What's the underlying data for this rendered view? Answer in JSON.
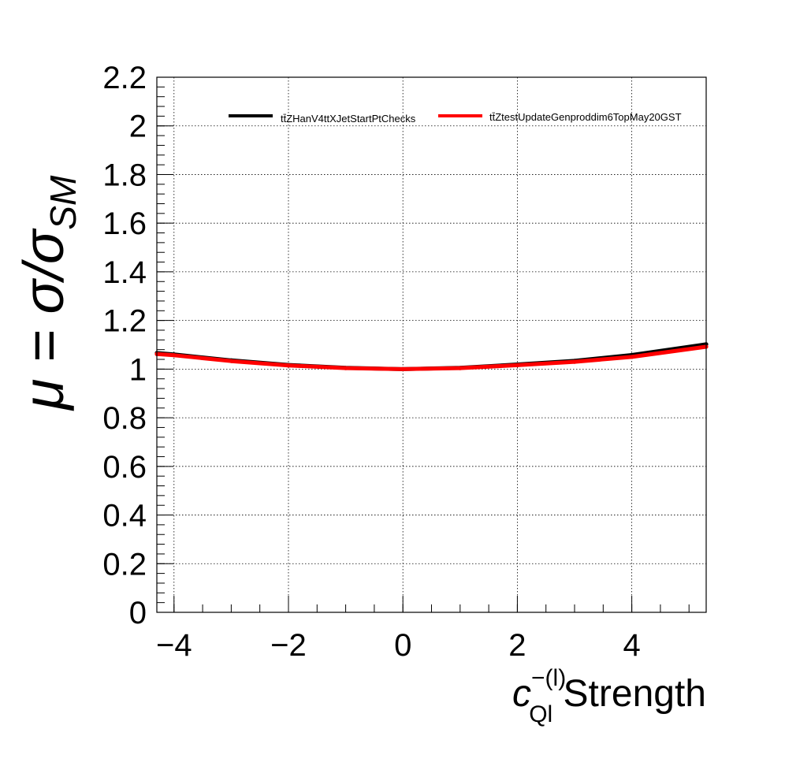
{
  "chart_data": {
    "type": "line",
    "xlim": [
      -4.3,
      5.3
    ],
    "ylim": [
      0,
      2.2
    ],
    "x_ticks": [
      -4,
      -2,
      0,
      2,
      4
    ],
    "x_tick_labels": [
      "−4",
      "−2",
      "0",
      "2",
      "4"
    ],
    "y_ticks": [
      0,
      0.2,
      0.4,
      0.6,
      0.8,
      1,
      1.2,
      1.4,
      1.6,
      1.8,
      2,
      2.2
    ],
    "y_tick_labels": [
      "0",
      "0.2",
      "0.4",
      "0.6",
      "0.8",
      "1",
      "1.2",
      "1.4",
      "1.6",
      "1.8",
      "2",
      "2.2"
    ],
    "grid": true,
    "legend_position": "top-right",
    "xlabel": {
      "symbol": "c",
      "superscript": "−(l)",
      "subscript": "Ql",
      "text": " Strength"
    },
    "ylabel": {
      "prefix": "μ = σ/σ",
      "subscript": "SM"
    },
    "series": [
      {
        "name": "tt̄ZHanV4ttXJetStartPtChecks",
        "color": "#000000",
        "x": [
          -4.3,
          -4,
          -3,
          -2,
          -1,
          0,
          1,
          2,
          3,
          4,
          5.3
        ],
        "y": [
          1.066,
          1.06,
          1.036,
          1.017,
          1.005,
          1.0,
          1.005,
          1.019,
          1.034,
          1.058,
          1.102
        ]
      },
      {
        "name": "tt̄ZtestUpdateGenproddim6TopMay20GST",
        "color": "#ff0000",
        "x": [
          -4.3,
          -4,
          -3,
          -2,
          -1,
          0,
          1,
          2,
          3,
          4,
          5.3
        ],
        "y": [
          1.062,
          1.057,
          1.033,
          1.015,
          1.004,
          1.0,
          1.004,
          1.016,
          1.03,
          1.05,
          1.092
        ]
      }
    ]
  }
}
